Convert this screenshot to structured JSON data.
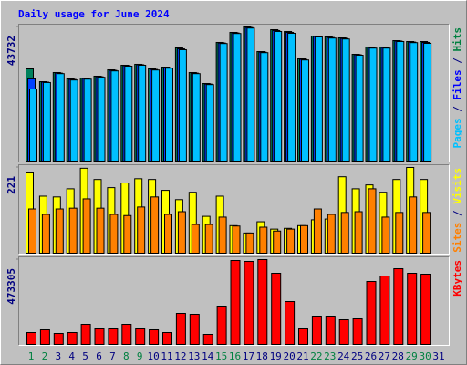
{
  "chart_data": [
    {
      "type": "bar",
      "title": "Daily usage for June 2024",
      "title_color": "#0000ff",
      "ylim": [
        0,
        43732
      ],
      "yticks": [
        43732
      ],
      "legend_separator": " / ",
      "series": [
        {
          "name": "Hits",
          "color": "#00805c",
          "label_color": "#008040",
          "values": [
            30050,
            25880,
            28860,
            26780,
            27070,
            27670,
            29750,
            31240,
            31540,
            30050,
            30640,
            36890,
            28860,
            25290,
            38680,
            41950,
            43732,
            35700,
            42840,
            42250,
            33320,
            40760,
            40460,
            40160,
            34810,
            37190,
            37190,
            39270,
            38970,
            38970,
            null
          ]
        },
        {
          "name": "Files",
          "color": "#0040ff",
          "label_color": "#0000ff",
          "values": [
            26800,
            25740,
            28680,
            26600,
            26890,
            27490,
            29570,
            31090,
            31390,
            29870,
            30460,
            36600,
            28680,
            25110,
            38500,
            41770,
            43550,
            35520,
            42550,
            41950,
            33140,
            40610,
            40280,
            39980,
            34660,
            37010,
            37010,
            39120,
            38790,
            38680,
            null
          ]
        },
        {
          "name": "Pages",
          "color": "#00c0ff",
          "label_color": "#00c0ff",
          "values": [
            23500,
            25600,
            28500,
            26420,
            26710,
            27310,
            29390,
            30940,
            31240,
            29690,
            30280,
            36300,
            28500,
            24930,
            38320,
            41590,
            43370,
            35340,
            42250,
            41650,
            32960,
            40460,
            40100,
            39800,
            34510,
            36830,
            36830,
            38970,
            38610,
            38380,
            null
          ]
        }
      ]
    },
    {
      "type": "bar",
      "ylim": [
        0,
        221
      ],
      "yticks": [
        221
      ],
      "legend_separator": " / ",
      "series": [
        {
          "name": "Visits",
          "color": "#ffff00",
          "label_color": "#ffff00",
          "values": [
            207,
            147,
            145,
            166,
            219,
            190,
            169,
            181,
            192,
            190,
            162,
            138,
            157,
            95,
            147,
            71,
            52,
            81,
            62,
            64,
            71,
            86,
            88,
            197,
            166,
            176,
            157,
            190,
            221,
            190,
            null
          ]
        },
        {
          "name": "Sites",
          "color": "#ff8000",
          "label_color": "#ff8000",
          "values": [
            114,
            100,
            114,
            116,
            140,
            116,
            100,
            97,
            119,
            145,
            100,
            107,
            74,
            74,
            93,
            70,
            52,
            67,
            57,
            62,
            71,
            114,
            100,
            105,
            107,
            166,
            93,
            105,
            145,
            105,
            null
          ]
        }
      ]
    },
    {
      "type": "bar",
      "ylim": [
        0,
        473305
      ],
      "yticks": [
        473305
      ],
      "legend_separator": " / ",
      "series": [
        {
          "name": "KBytes",
          "color": "#ff0000",
          "label_color": "#ff0000",
          "values": [
            66160,
            81420,
            61070,
            66160,
            111960,
            86510,
            86510,
            111960,
            86510,
            81420,
            66160,
            173030,
            167940,
            55980,
            213740,
            468190,
            463100,
            473305,
            396940,
            239180,
            86510,
            157760,
            157760,
            137400,
            142490,
            351140,
            381680,
            422390,
            396940,
            391850,
            null
          ]
        }
      ],
      "categories": [
        "1",
        "2",
        "3",
        "4",
        "5",
        "6",
        "7",
        "8",
        "9",
        "10",
        "11",
        "12",
        "13",
        "14",
        "15",
        "16",
        "17",
        "18",
        "19",
        "20",
        "21",
        "22",
        "23",
        "24",
        "25",
        "26",
        "27",
        "28",
        "29",
        "30",
        "31"
      ],
      "category_colors": [
        "#008040",
        "#008040",
        "#000080",
        "#000080",
        "#000080",
        "#000080",
        "#000080",
        "#008040",
        "#008040",
        "#000080",
        "#000080",
        "#000080",
        "#000080",
        "#000080",
        "#008040",
        "#008040",
        "#000080",
        "#000080",
        "#000080",
        "#000080",
        "#000080",
        "#008040",
        "#008040",
        "#000080",
        "#000080",
        "#000080",
        "#000080",
        "#000080",
        "#008040",
        "#008040",
        "#000080"
      ]
    }
  ]
}
